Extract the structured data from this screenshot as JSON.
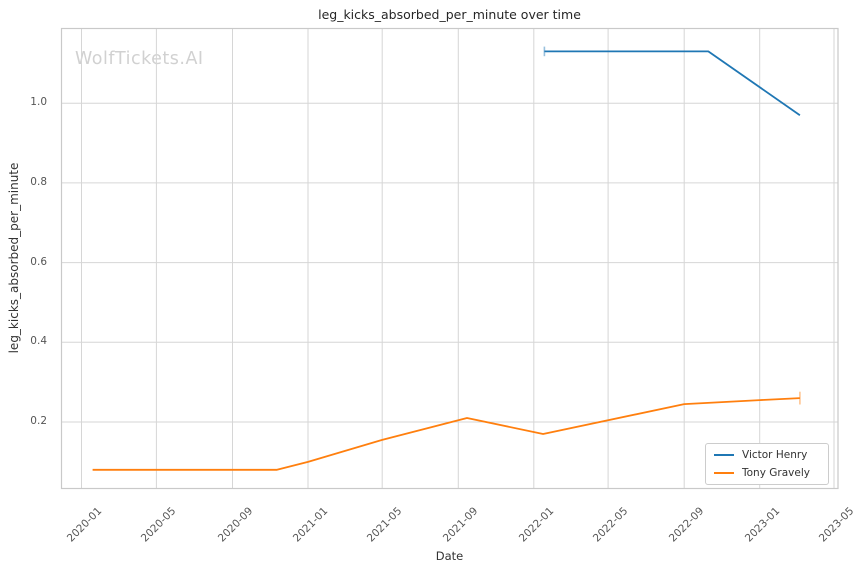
{
  "figure": {
    "watermark": "WolfTickets.AI"
  },
  "chart_data": {
    "type": "line",
    "title": "leg_kicks_absorbed_per_minute over time",
    "xlabel": "Date",
    "ylabel": "leg_kicks_absorbed_per_minute",
    "x_tick_labels": [
      "2020-01",
      "2020-05",
      "2020-09",
      "2021-01",
      "2021-05",
      "2021-09",
      "2022-01",
      "2022-05",
      "2022-09",
      "2023-01",
      "2023-05"
    ],
    "y_tick_values": [
      0.2,
      0.4,
      0.6,
      0.8,
      1.0
    ],
    "y_tick_labels": [
      "0.2",
      "0.4",
      "0.6",
      "0.8",
      "1.0"
    ],
    "xlim": [
      "2019-12-01",
      "2023-05-15"
    ],
    "ylim": [
      0.03,
      1.19
    ],
    "grid": true,
    "legend_position": "lower right",
    "series": [
      {
        "name": "Victor Henry",
        "color": "#1f77b4",
        "points": [
          [
            "2022-01-18",
            1.13
          ],
          [
            "2022-10-10",
            1.13
          ],
          [
            "2023-03-07",
            0.97
          ]
        ]
      },
      {
        "name": "Tony Gravely",
        "color": "#ff7f0e",
        "points": [
          [
            "2020-01-19",
            0.08
          ],
          [
            "2020-11-12",
            0.08
          ],
          [
            "2021-01-01",
            0.1
          ],
          [
            "2021-05-01",
            0.155
          ],
          [
            "2021-09-15",
            0.21
          ],
          [
            "2022-01-16",
            0.17
          ],
          [
            "2022-09-01",
            0.245
          ],
          [
            "2023-01-01",
            0.255
          ],
          [
            "2023-03-07",
            0.26
          ]
        ]
      }
    ],
    "error_bars": [
      {
        "series": "Victor Henry",
        "x": "2022-01-18",
        "value": 1.13,
        "delta": 0.012
      },
      {
        "series": "Tony Gravely",
        "x": "2023-03-07",
        "value": 0.26,
        "delta": 0.016
      }
    ]
  },
  "colors": {
    "victor_henry": "#1f77b4",
    "tony_gravely": "#ff7f0e",
    "grid": "#d6d6d6",
    "spine": "#c9c9c9",
    "watermark": "#d1d1d1",
    "title_text": "#262626",
    "tick_text": "#555555",
    "axis_label_text": "#333333"
  }
}
